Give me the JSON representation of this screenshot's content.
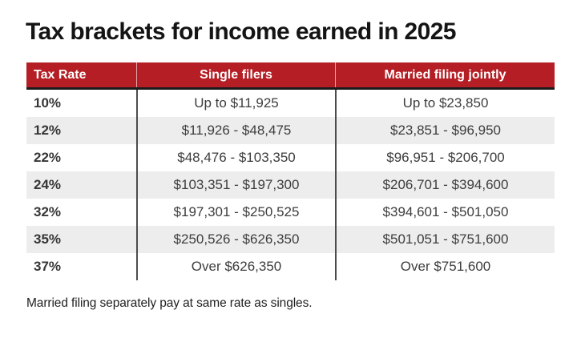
{
  "title": "Tax brackets for income earned in 2025",
  "footnote": "Married filing separately pay at same rate as singles.",
  "chart_data": {
    "type": "table",
    "title": "Tax brackets for income earned in 2025",
    "columns": [
      "Tax Rate",
      "Single filers",
      "Married filing jointly"
    ],
    "rows": [
      [
        "10%",
        "Up to $11,925",
        "Up to $23,850"
      ],
      [
        "12%",
        "$11,926 - $48,475",
        "$23,851 - $96,950"
      ],
      [
        "22%",
        "$48,476 - $103,350",
        "$96,951 - $206,700"
      ],
      [
        "24%",
        "$103,351 - $197,300",
        "$206,701 - $394,600"
      ],
      [
        "32%",
        "$197,301 - $250,525",
        "$394,601 - $501,050"
      ],
      [
        "35%",
        "$250,526 - $626,350",
        "$501,051 - $751,600"
      ],
      [
        "37%",
        "Over $626,350",
        "Over $751,600"
      ]
    ],
    "footnote": "Married filing separately pay at same rate as singles.",
    "layout_hints": {
      "zebra_striping": true,
      "stripe_rows": [
        "12%",
        "24%",
        "35%"
      ]
    }
  },
  "colors": {
    "header_bg": "#b51e24",
    "header_text": "#ffffff",
    "header_bottom_border": "#1a1a1a",
    "row_alt_bg": "#ededed",
    "body_text": "#3d3d3d",
    "column_divider": "#4c4c4c",
    "title_text": "#141414",
    "page_bg": "#ffffff"
  }
}
